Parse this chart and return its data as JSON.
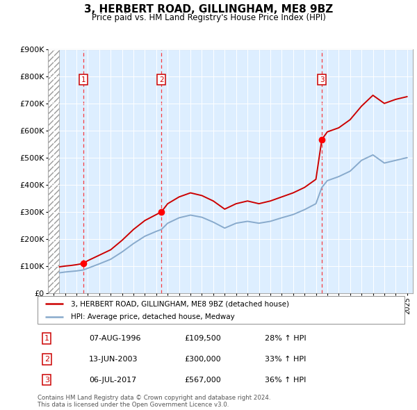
{
  "title": "3, HERBERT ROAD, GILLINGHAM, ME8 9BZ",
  "subtitle": "Price paid vs. HM Land Registry's House Price Index (HPI)",
  "ylim": [
    0,
    900000
  ],
  "yticks": [
    0,
    100000,
    200000,
    300000,
    400000,
    500000,
    600000,
    700000,
    800000,
    900000
  ],
  "ytick_labels": [
    "£0",
    "£100K",
    "£200K",
    "£300K",
    "£400K",
    "£500K",
    "£600K",
    "£700K",
    "£800K",
    "£900K"
  ],
  "xlim_start": 1993.5,
  "xlim_end": 2025.5,
  "hatch_end": 1994.5,
  "bg_color": "#ddeeff",
  "sale_line_color": "#cc0000",
  "hpi_color": "#88aacc",
  "transactions": [
    {
      "num": 1,
      "date": "07-AUG-1996",
      "price": 109500,
      "pct": "28%",
      "x": 1996.6
    },
    {
      "num": 2,
      "date": "13-JUN-2003",
      "price": 300000,
      "pct": "33%",
      "x": 2003.45
    },
    {
      "num": 3,
      "date": "06-JUL-2017",
      "price": 567000,
      "pct": "36%",
      "x": 2017.52
    }
  ],
  "legend_label_sale": "3, HERBERT ROAD, GILLINGHAM, ME8 9BZ (detached house)",
  "legend_label_hpi": "HPI: Average price, detached house, Medway",
  "footer": "Contains HM Land Registry data © Crown copyright and database right 2024.\nThis data is licensed under the Open Government Licence v3.0.",
  "sale_x": [
    1994.5,
    1995,
    1995.5,
    1996,
    1996.6,
    1997,
    1998,
    1999,
    2000,
    2001,
    2002,
    2003,
    2003.45,
    2004,
    2005,
    2006,
    2007,
    2008,
    2009,
    2010,
    2011,
    2012,
    2013,
    2014,
    2015,
    2016,
    2017,
    2017.52,
    2018,
    2019,
    2020,
    2021,
    2022,
    2023,
    2024,
    2025
  ],
  "sale_y": [
    97000,
    100000,
    102000,
    105000,
    109500,
    120000,
    140000,
    160000,
    195000,
    235000,
    268000,
    290000,
    300000,
    330000,
    355000,
    370000,
    360000,
    340000,
    310000,
    330000,
    340000,
    330000,
    340000,
    355000,
    370000,
    390000,
    420000,
    567000,
    595000,
    610000,
    640000,
    690000,
    730000,
    700000,
    715000,
    725000
  ],
  "hpi_x": [
    1994.5,
    1995,
    1995.5,
    1996,
    1996.6,
    1997,
    1998,
    1999,
    2000,
    2001,
    2002,
    2003,
    2003.45,
    2004,
    2005,
    2006,
    2007,
    2008,
    2009,
    2010,
    2011,
    2012,
    2013,
    2014,
    2015,
    2016,
    2017,
    2017.52,
    2018,
    2019,
    2020,
    2021,
    2022,
    2023,
    2024,
    2025
  ],
  "hpi_y": [
    75000,
    78000,
    80000,
    82000,
    85500,
    92000,
    108000,
    125000,
    152000,
    183000,
    210000,
    228000,
    235000,
    258000,
    278000,
    288000,
    280000,
    262000,
    240000,
    258000,
    265000,
    258000,
    265000,
    278000,
    290000,
    308000,
    330000,
    390000,
    415000,
    430000,
    450000,
    490000,
    510000,
    480000,
    490000,
    500000
  ]
}
